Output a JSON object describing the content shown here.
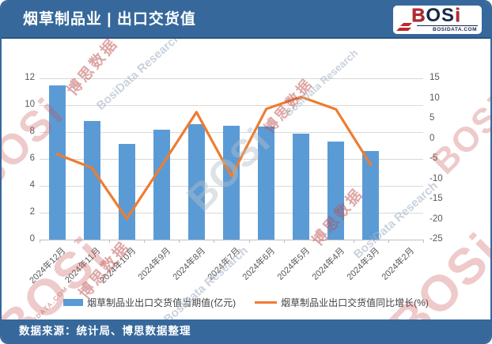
{
  "header": {
    "title": "烟草制品业 | 出口交货值",
    "logo": {
      "part1": "B",
      "part2": "OS",
      "part3": "i",
      "domain": "BOSIDATA.COM"
    }
  },
  "footer": {
    "source": "数据来源：统计局、博思数据整理"
  },
  "watermark": {
    "brand": "BOSi",
    "brand_cn": "博思数据",
    "brand_en": "BosiData Research",
    "domain": "BOSIDATA.COM"
  },
  "colors": {
    "header_blue": "#36689B",
    "bar_blue": "#5B9BD5",
    "line_orange": "#ED7D31",
    "axis_text": "#595959",
    "gridline": "#D9D9D9",
    "axis_line": "#BFBFBF"
  },
  "chart_data": {
    "type": "bar",
    "combo": "bar+line",
    "title": "烟草制品业 | 出口交货值",
    "categories": [
      "2024年12月",
      "2024年11月",
      "2024年10月",
      "2024年9月",
      "2024年8月",
      "2024年7月",
      "2024年6月",
      "2024年5月",
      "2024年4月",
      "2024年3月",
      "2024年2月"
    ],
    "series": [
      {
        "name": "烟草制品业出口交货值当期值(亿元)",
        "type": "bar",
        "axis": "left",
        "values": [
          11.5,
          8.8,
          7.1,
          8.2,
          8.6,
          8.5,
          8.4,
          7.9,
          7.3,
          6.6,
          null
        ]
      },
      {
        "name": "烟草制品业出口交货值同比增长(%)",
        "type": "line",
        "axis": "right",
        "values": [
          -3.8,
          -7.2,
          -19.8,
          -6.7,
          6.6,
          -9.3,
          7.4,
          10.4,
          7.3,
          -6.5,
          null
        ]
      }
    ],
    "left_axis": {
      "min": 0,
      "max": 12,
      "step": 2,
      "ticks": [
        12,
        10,
        8,
        6,
        4,
        2,
        0
      ]
    },
    "right_axis": {
      "min": -25,
      "max": 15,
      "step": 5,
      "ticks": [
        15,
        10,
        5,
        0,
        -5,
        -10,
        -15,
        -20,
        -25
      ]
    },
    "grid": true,
    "legend_position": "bottom"
  }
}
